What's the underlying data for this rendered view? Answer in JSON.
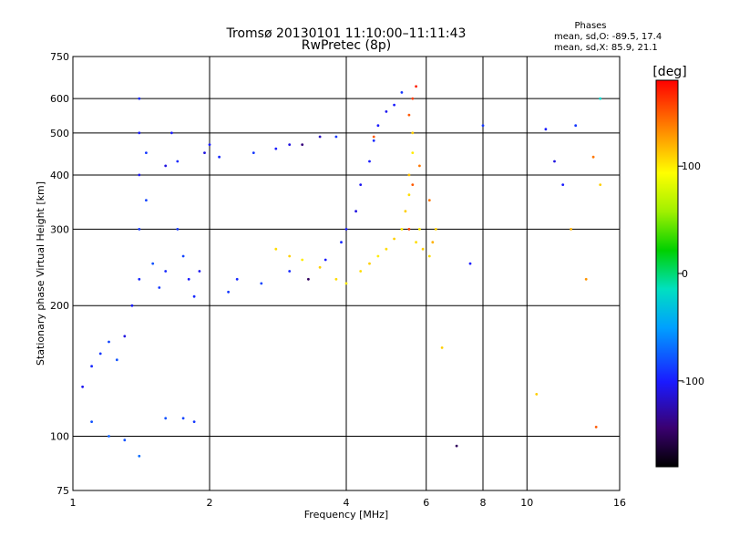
{
  "chart_data": {
    "type": "scatter",
    "title": "Tromsø 20130101 11:10:00–11:11:43",
    "subtitle": "RwPretec (8p)",
    "xlabel": "Frequency [MHz]",
    "ylabel": "Stationary phase Virtual Height [km]",
    "x_scale": "log",
    "y_scale": "log",
    "xlim": [
      1,
      16
    ],
    "ylim": [
      75,
      750
    ],
    "x_ticks": [
      1,
      2,
      4,
      6,
      8,
      10,
      16
    ],
    "x_tick_labels": [
      "1",
      "2",
      "4",
      "6",
      "8",
      "10",
      "16"
    ],
    "y_ticks": [
      75,
      100,
      200,
      300,
      400,
      500,
      600,
      750
    ],
    "y_tick_labels": [
      "75",
      "100",
      "200",
      "300",
      "400",
      "500",
      "600",
      "750"
    ],
    "grid": true,
    "stats": {
      "header": "Phases",
      "line_o": "mean, sd,O: -89.5, 17.4",
      "line_x": "mean, sd,X:  85.9, 21.1"
    },
    "colorbar": {
      "label": "[deg]",
      "range": [
        -180,
        180
      ],
      "ticks": [
        100,
        0,
        -100
      ],
      "tick_labels": [
        "100",
        "0",
        "-100"
      ]
    },
    "series": [
      {
        "type": "scatter",
        "points": [
          [
            1.05,
            130,
            -105
          ],
          [
            1.1,
            145,
            -95
          ],
          [
            1.15,
            155,
            -90
          ],
          [
            1.2,
            165,
            -85
          ],
          [
            1.25,
            150,
            -80
          ],
          [
            1.3,
            170,
            -110
          ],
          [
            1.35,
            200,
            -100
          ],
          [
            1.4,
            230,
            -95
          ],
          [
            1.4,
            300,
            -90
          ],
          [
            1.4,
            400,
            -105
          ],
          [
            1.4,
            500,
            -100
          ],
          [
            1.4,
            600,
            -95
          ],
          [
            1.45,
            350,
            -85
          ],
          [
            1.45,
            450,
            -90
          ],
          [
            1.5,
            250,
            -80
          ],
          [
            1.55,
            220,
            -90
          ],
          [
            1.6,
            240,
            -95
          ],
          [
            1.6,
            420,
            -110
          ],
          [
            1.65,
            500,
            -100
          ],
          [
            1.7,
            430,
            -95
          ],
          [
            1.7,
            300,
            -90
          ],
          [
            1.75,
            260,
            -85
          ],
          [
            1.8,
            230,
            -100
          ],
          [
            1.85,
            210,
            -95
          ],
          [
            1.9,
            240,
            -105
          ],
          [
            1.95,
            450,
            -110
          ],
          [
            2.0,
            470,
            -100
          ],
          [
            2.1,
            440,
            -95
          ],
          [
            2.2,
            215,
            -90
          ],
          [
            2.3,
            230,
            -95
          ],
          [
            2.5,
            450,
            -90
          ],
          [
            2.6,
            225,
            -85
          ],
          [
            2.8,
            460,
            -100
          ],
          [
            3.0,
            240,
            -95
          ],
          [
            3.0,
            470,
            -110
          ],
          [
            3.2,
            470,
            -140
          ],
          [
            3.3,
            230,
            -150
          ],
          [
            3.5,
            490,
            -120
          ],
          [
            3.6,
            255,
            -100
          ],
          [
            3.8,
            490,
            -90
          ],
          [
            3.9,
            280,
            -95
          ],
          [
            4.0,
            300,
            -100
          ],
          [
            4.2,
            330,
            -110
          ],
          [
            4.3,
            380,
            -105
          ],
          [
            4.5,
            430,
            -100
          ],
          [
            4.6,
            480,
            -95
          ],
          [
            4.7,
            520,
            -100
          ],
          [
            4.9,
            560,
            -105
          ],
          [
            5.1,
            580,
            -100
          ],
          [
            5.3,
            620,
            -90
          ]
        ]
      },
      {
        "type": "scatter",
        "points": [
          [
            1.1,
            108,
            -80
          ],
          [
            1.2,
            100,
            -75
          ],
          [
            1.6,
            110,
            -80
          ],
          [
            1.75,
            110,
            -85
          ],
          [
            1.85,
            108,
            -90
          ],
          [
            1.4,
            90,
            -70
          ],
          [
            1.3,
            98,
            -80
          ]
        ]
      },
      {
        "type": "scatter",
        "points": [
          [
            2.8,
            270,
            105
          ],
          [
            3.0,
            260,
            110
          ],
          [
            3.2,
            255,
            100
          ],
          [
            3.5,
            245,
            110
          ],
          [
            3.8,
            230,
            105
          ],
          [
            4.0,
            225,
            100
          ],
          [
            4.3,
            240,
            105
          ],
          [
            4.5,
            250,
            110
          ],
          [
            4.7,
            260,
            100
          ],
          [
            4.9,
            270,
            105
          ],
          [
            5.1,
            285,
            110
          ],
          [
            5.3,
            300,
            100
          ],
          [
            5.4,
            330,
            110
          ],
          [
            5.5,
            360,
            105
          ],
          [
            5.5,
            400,
            115
          ],
          [
            5.6,
            450,
            100
          ],
          [
            5.6,
            500,
            110
          ],
          [
            5.7,
            280,
            105
          ],
          [
            5.8,
            300,
            100
          ],
          [
            5.9,
            270,
            110
          ],
          [
            6.1,
            260,
            105
          ],
          [
            6.2,
            280,
            120
          ],
          [
            6.3,
            300,
            110
          ]
        ]
      },
      {
        "type": "scatter",
        "points": [
          [
            5.5,
            550,
            150
          ],
          [
            5.6,
            600,
            160
          ],
          [
            5.7,
            640,
            170
          ],
          [
            5.6,
            380,
            150
          ],
          [
            5.8,
            420,
            140
          ],
          [
            5.5,
            300,
            160
          ],
          [
            4.6,
            490,
            150
          ],
          [
            6.1,
            350,
            140
          ]
        ]
      },
      {
        "type": "scatter",
        "points": [
          [
            6.5,
            160,
            110
          ],
          [
            7.0,
            95,
            -150
          ],
          [
            7.5,
            250,
            -100
          ],
          [
            8.0,
            520,
            -90
          ],
          [
            10.5,
            125,
            110
          ],
          [
            11.0,
            510,
            -100
          ],
          [
            11.5,
            430,
            -110
          ],
          [
            12.0,
            380,
            -100
          ],
          [
            12.5,
            300,
            120
          ],
          [
            12.8,
            520,
            -90
          ],
          [
            13.5,
            230,
            130
          ],
          [
            14.0,
            440,
            140
          ],
          [
            14.2,
            105,
            150
          ],
          [
            14.5,
            380,
            110
          ],
          [
            14.5,
            600,
            -20
          ]
        ]
      }
    ]
  }
}
